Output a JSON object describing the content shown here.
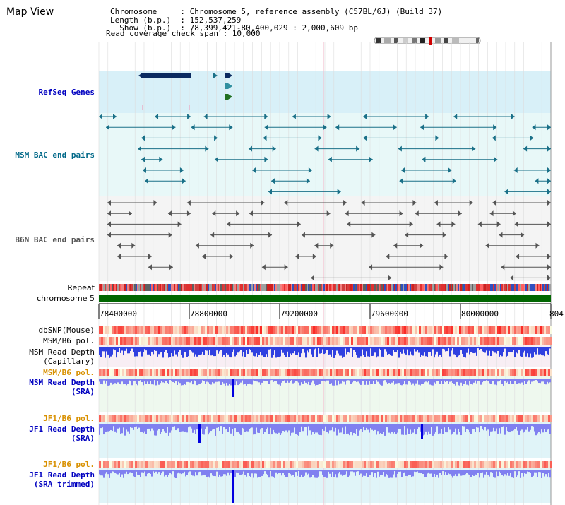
{
  "header": {
    "title": "Map View",
    "lines": [
      "Chromosome     : Chromosome 5, reference assembly (C57BL/6J) (Build 37)",
      "Length (b.p.)  : 152,537,259",
      "  Show (b.p.)  : 78,399,421-80,400,029 : 2,000,609 bp",
      "Read coverage check span : 10,000"
    ]
  },
  "tracks": {
    "refseq": "RefSeq Genes",
    "msm_bac": "MSM BAC end pairs",
    "b6n_bac": "B6N BAC end pairs",
    "repeat": "Repeat",
    "chromosome": "chromosome 5",
    "dbsnp": "dbSNP(Mouse)",
    "msm_b6_pol_1": "MSM/B6 pol.",
    "msm_depth_cap_1": "MSM Read Depth",
    "msm_depth_cap_2": "(Capillary)",
    "msm_b6_pol_2": "MSM/B6 pol.",
    "msm_depth_sra_1": "MSM Read Depth",
    "msm_depth_sra_2": "(SRA)",
    "jf1_b6_pol_1": "JF1/B6 pol.",
    "jf1_depth_sra_1": "JF1 Read Depth",
    "jf1_depth_sra_2": "(SRA)",
    "jf1_b6_pol_2": "JF1/B6 pol.",
    "jf1_depth_trim_1": "JF1 Read Depth",
    "jf1_depth_trim_2": "(SRA trimmed)"
  },
  "axis": {
    "ticks": [
      "78400000",
      "78800000",
      "79200000",
      "79600000",
      "80000000",
      "804"
    ]
  },
  "colors": {
    "refseq_bg": "#d8f0f8",
    "msm_bac_bg": "#e8f8f8",
    "b6n_bac_bg": "#f4f4f4",
    "msm_bac_feature": "#1a7088",
    "b6n_bac_feature": "#555555",
    "chromosome": "#006600",
    "label_blue": "#0000c0",
    "label_teal": "#006888",
    "label_orange": "#d89000",
    "depth_blue": "#3040e0",
    "depth_light": "#8080f0"
  }
}
